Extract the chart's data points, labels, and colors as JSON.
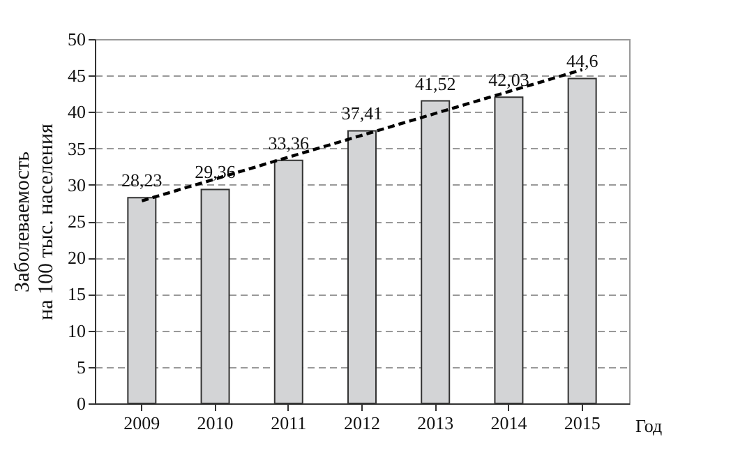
{
  "chart_data": {
    "type": "bar",
    "xlabel": "Год",
    "ylabel": "Заболеваемость\nна 100 тыс. населения",
    "categories": [
      "2009",
      "2010",
      "2011",
      "2012",
      "2013",
      "2014",
      "2015"
    ],
    "series": [
      {
        "color": "#d3d4d6",
        "values": [
          28.23,
          29.36,
          33.36,
          37.41,
          41.52,
          42.03,
          44.6
        ],
        "value_labels": [
          "28,23",
          "29,36",
          "33,36",
          "37,41",
          "41,52",
          "42,03",
          "44,6"
        ]
      },
      {
        "type": "line",
        "color": "#000000",
        "line_style": "dashed",
        "values": [
          27.8,
          30.8,
          33.8,
          36.8,
          39.8,
          42.8,
          45.8
        ]
      }
    ],
    "ylim": [
      0,
      50
    ],
    "yticks": [
      0,
      5,
      10,
      15,
      20,
      25,
      30,
      35,
      40,
      45,
      50
    ],
    "grid": "y"
  }
}
